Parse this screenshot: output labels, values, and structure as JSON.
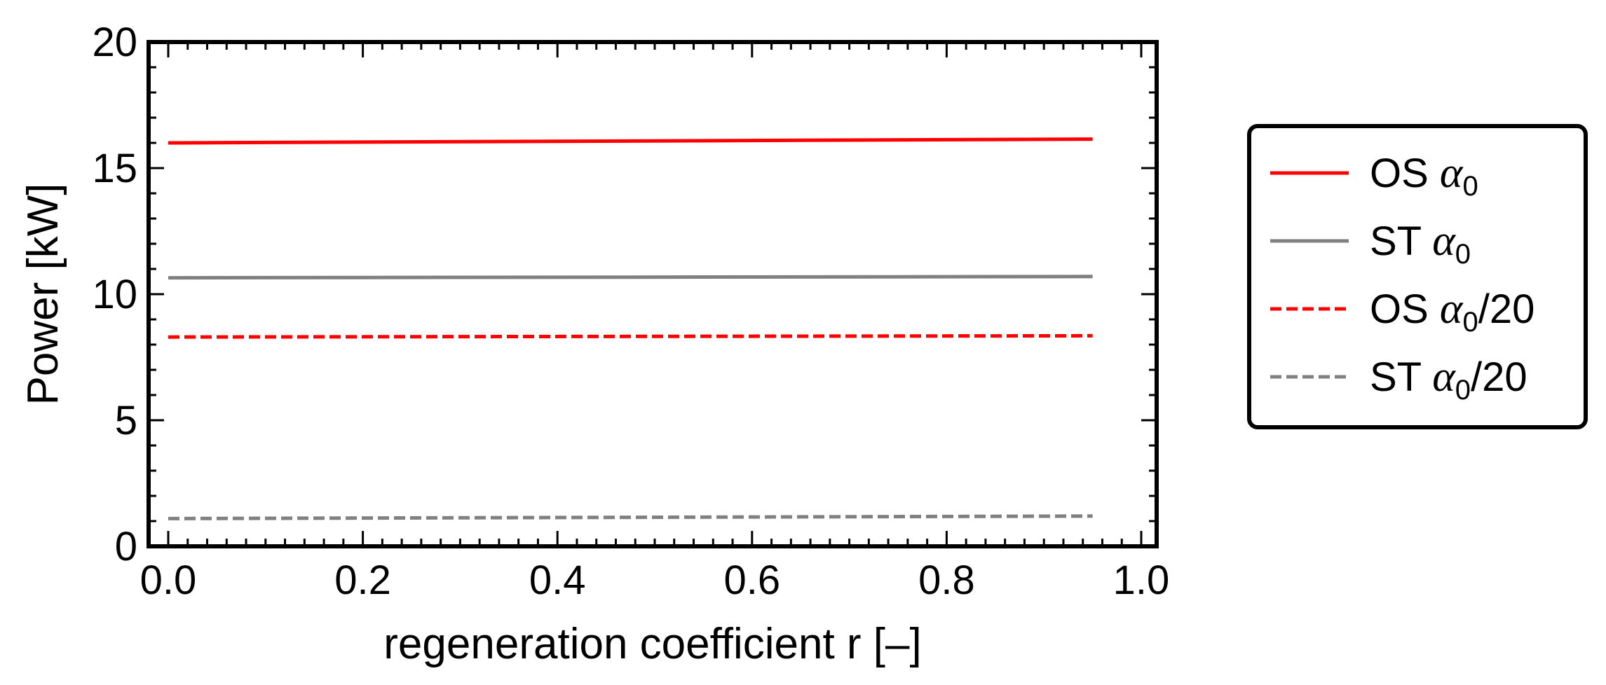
{
  "chart_data": {
    "type": "line",
    "title": "",
    "xlabel": "regeneration coefficient r [–]",
    "ylabel": "Power [kW]",
    "xlim": [
      0,
      1.0
    ],
    "ylim": [
      0,
      20
    ],
    "x_ticks": [
      "0.0",
      "0.2",
      "0.4",
      "0.6",
      "0.8",
      "1.0"
    ],
    "y_ticks": [
      "0",
      "5",
      "10",
      "15",
      "20"
    ],
    "grid": false,
    "legend_position": "right",
    "series": [
      {
        "name": "OS α0",
        "label_prefix": "OS ",
        "label_suffix": "",
        "color": "#ff0000",
        "dash": "solid",
        "x": [
          0.0,
          0.95
        ],
        "values": [
          16.0,
          16.15
        ]
      },
      {
        "name": "ST α0",
        "label_prefix": "ST ",
        "label_suffix": "",
        "color": "#808080",
        "dash": "solid",
        "x": [
          0.0,
          0.95
        ],
        "values": [
          10.65,
          10.7
        ]
      },
      {
        "name": "OS α0/20",
        "label_prefix": "OS ",
        "label_suffix": "/20",
        "color": "#ff0000",
        "dash": "dashed",
        "x": [
          0.0,
          0.95
        ],
        "values": [
          8.3,
          8.35
        ]
      },
      {
        "name": "ST α0/20",
        "label_prefix": "ST ",
        "label_suffix": "/20",
        "color": "#808080",
        "dash": "dashed",
        "x": [
          0.0,
          0.95
        ],
        "values": [
          1.1,
          1.2
        ]
      }
    ]
  }
}
